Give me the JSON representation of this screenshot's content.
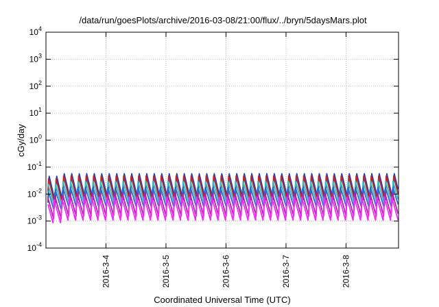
{
  "chart_data": {
    "type": "line",
    "title": "/data/run/goesPlots/archive/2016-03-08/21:00/flux/../bryn/5daysMars.plot",
    "xlabel": "Coordinated Universal Time (UTC)",
    "ylabel": "cGy/day",
    "y_scale": "log",
    "ylim": [
      0.0001,
      10000
    ],
    "y_ticks": [
      {
        "base": "10",
        "exp": "-4",
        "value": 0.0001
      },
      {
        "base": "10",
        "exp": "-3",
        "value": 0.001
      },
      {
        "base": "10",
        "exp": "-2",
        "value": 0.01
      },
      {
        "base": "10",
        "exp": "-1",
        "value": 0.1
      },
      {
        "base": "10",
        "exp": "0",
        "value": 1
      },
      {
        "base": "10",
        "exp": "1",
        "value": 10
      },
      {
        "base": "10",
        "exp": "2",
        "value": 100
      },
      {
        "base": "10",
        "exp": "3",
        "value": 1000
      },
      {
        "base": "10",
        "exp": "4",
        "value": 10000
      }
    ],
    "xlim": [
      "2016-03-03 00:00",
      "2016-03-08 21:00"
    ],
    "x_ticks": [
      "2016-3-4",
      "2016-3-5",
      "2016-3-6",
      "2016-3-7",
      "2016-3-8"
    ],
    "x_tick_dates": [
      "2016-03-04",
      "2016-03-05",
      "2016-03-06",
      "2016-03-07",
      "2016-03-08"
    ],
    "grid": true,
    "legend": "none",
    "cycle_hours": 3,
    "series": [
      {
        "color": "#1f3fbf",
        "peak": 0.065,
        "trough": 0.006
      },
      {
        "color": "#cc1f1f",
        "peak": 0.05,
        "trough": 0.005
      },
      {
        "color": "#2fbfbf",
        "peak": 0.03,
        "trough": 0.004
      },
      {
        "color": "#1f6fcf",
        "peak": 0.02,
        "trough": 0.003
      },
      {
        "color": "#b01fb0",
        "peak": 0.012,
        "trough": 0.0015
      },
      {
        "color": "#ff22ff",
        "peak": 0.008,
        "trough": 0.001
      }
    ]
  }
}
